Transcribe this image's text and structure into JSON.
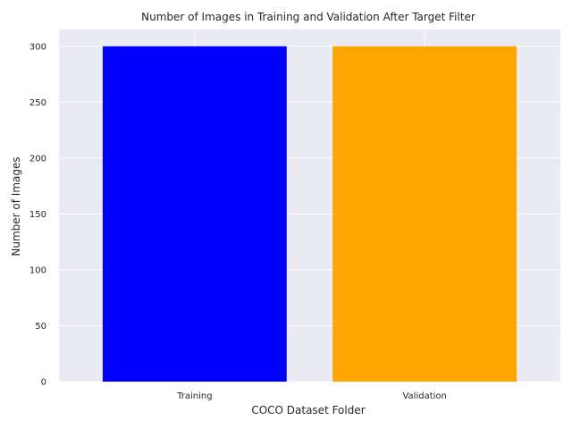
{
  "chart_data": {
    "type": "bar",
    "title": "Number of Images in Training and Validation After Target Filter",
    "xlabel": "COCO Dataset Folder",
    "ylabel": "Number of Images",
    "categories": [
      "Training",
      "Validation"
    ],
    "values": [
      300,
      300
    ],
    "colors": [
      "#0000ff",
      "#ffa500"
    ],
    "ylim": [
      0,
      315
    ],
    "yticks": [
      0,
      50,
      100,
      150,
      200,
      250,
      300
    ],
    "grid": true,
    "background": "#eaeaf2",
    "grid_color": "#ffffff"
  }
}
